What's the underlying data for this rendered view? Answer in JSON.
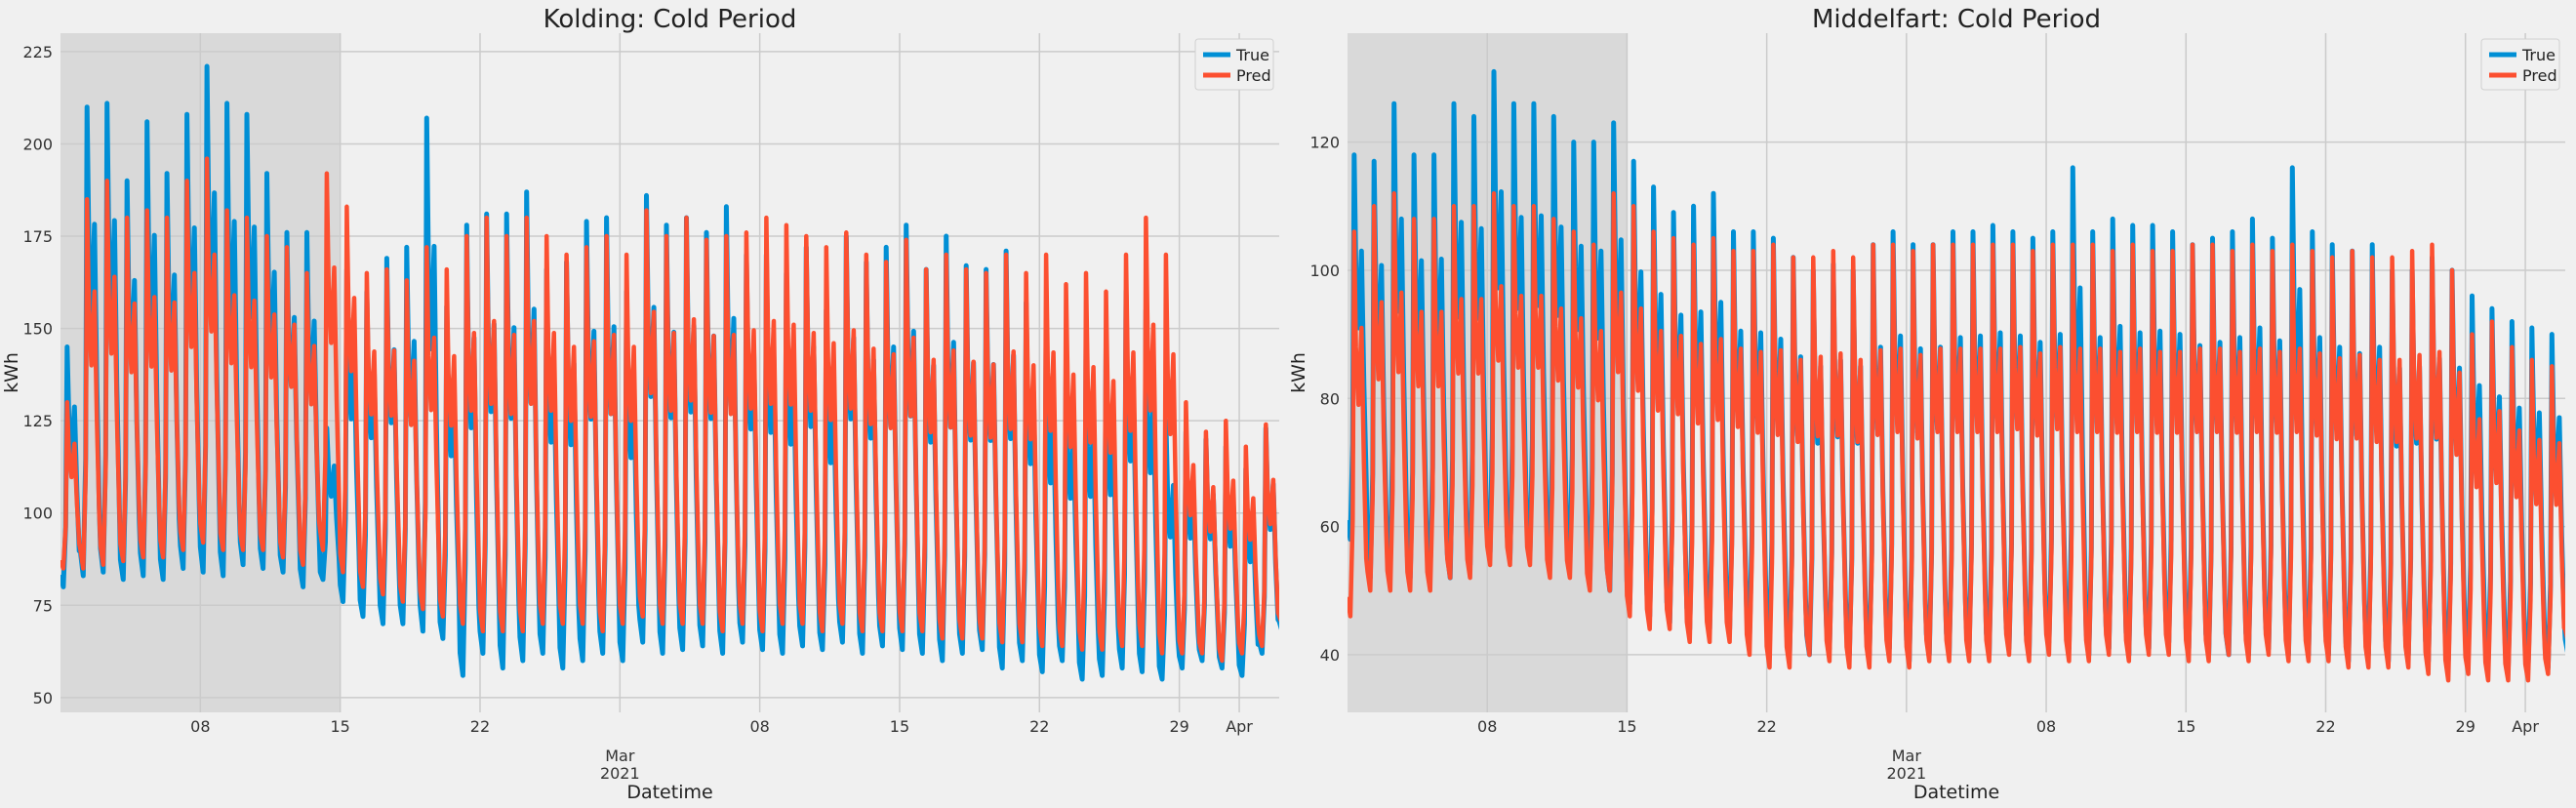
{
  "chart_data": [
    {
      "type": "line",
      "title": "Kolding: Cold Period",
      "xlabel": "Datetime",
      "ylabel": "kWh",
      "x_range": [
        "2021-02-01",
        "2021-04-03"
      ],
      "ylim": [
        46,
        230
      ],
      "yticks": [
        50,
        75,
        100,
        125,
        150,
        175,
        200,
        225
      ],
      "xticks": [
        {
          "date": "2021-02-08",
          "label": "08"
        },
        {
          "date": "2021-02-15",
          "label": "15"
        },
        {
          "date": "2021-02-22",
          "label": "22"
        },
        {
          "date": "2021-03-01",
          "label": "Mar",
          "sublabel": "2021"
        },
        {
          "date": "2021-03-08",
          "label": "08"
        },
        {
          "date": "2021-03-15",
          "label": "15"
        },
        {
          "date": "2021-03-22",
          "label": "22"
        },
        {
          "date": "2021-03-29",
          "label": "29"
        },
        {
          "date": "2021-04-01",
          "label": "Apr"
        }
      ],
      "shaded_span": [
        "2021-02-01",
        "2021-02-15"
      ],
      "grid": true,
      "legend": "top-right",
      "series": [
        {
          "name": "True",
          "color": "#008fd5",
          "daily_peaks": [
            145,
            210,
            211,
            190,
            206,
            192,
            208,
            221,
            211,
            208,
            192,
            176,
            176,
            123,
            166,
            160,
            169,
            172,
            207,
            156,
            178,
            181,
            181,
            187,
            166,
            168,
            179,
            180,
            160,
            186,
            178,
            180,
            176,
            183,
            170,
            170,
            165,
            172,
            155,
            175,
            168,
            172,
            178,
            166,
            175,
            167,
            166,
            171,
            157,
            150,
            140,
            145,
            145,
            160,
            155,
            125,
            122,
            120,
            118,
            112,
            123,
            122
          ],
          "daily_troughs": [
            80,
            83,
            84,
            82,
            83,
            82,
            85,
            84,
            83,
            86,
            85,
            84,
            80,
            82,
            76,
            72,
            70,
            70,
            68,
            66,
            56,
            62,
            58,
            60,
            62,
            58,
            60,
            62,
            60,
            65,
            62,
            63,
            64,
            62,
            65,
            63,
            62,
            64,
            63,
            65,
            62,
            64,
            63,
            62,
            60,
            62,
            63,
            58,
            60,
            57,
            60,
            55,
            56,
            58,
            57,
            55,
            58,
            60,
            58,
            56,
            62,
            68
          ]
        },
        {
          "name": "Pred",
          "color": "#fc4f30",
          "daily_peaks": [
            130,
            185,
            190,
            180,
            182,
            180,
            190,
            196,
            182,
            180,
            175,
            172,
            165,
            192,
            183,
            165,
            166,
            163,
            172,
            166,
            175,
            180,
            175,
            180,
            175,
            170,
            172,
            175,
            170,
            182,
            175,
            180,
            174,
            175,
            176,
            180,
            178,
            175,
            172,
            176,
            170,
            168,
            174,
            166,
            170,
            166,
            165,
            170,
            165,
            170,
            162,
            165,
            160,
            170,
            180,
            170,
            130,
            122,
            125,
            118,
            124,
            113
          ],
          "daily_troughs": [
            85,
            85,
            86,
            87,
            88,
            88,
            90,
            92,
            90,
            90,
            90,
            88,
            86,
            90,
            84,
            80,
            78,
            76,
            74,
            72,
            70,
            68,
            68,
            68,
            70,
            70,
            70,
            68,
            70,
            72,
            70,
            70,
            70,
            68,
            70,
            68,
            70,
            70,
            68,
            70,
            68,
            68,
            68,
            68,
            66,
            66,
            66,
            65,
            65,
            64,
            64,
            63,
            63,
            64,
            64,
            62,
            62,
            62,
            60,
            62,
            64,
            70
          ]
        }
      ]
    },
    {
      "type": "line",
      "title": "Middelfart: Cold Period",
      "xlabel": "Datetime",
      "ylabel": "kWh",
      "x_range": [
        "2021-02-01",
        "2021-04-03"
      ],
      "ylim": [
        31,
        137
      ],
      "yticks": [
        40,
        60,
        80,
        100,
        120
      ],
      "xticks": [
        {
          "date": "2021-02-08",
          "label": "08"
        },
        {
          "date": "2021-02-15",
          "label": "15"
        },
        {
          "date": "2021-02-22",
          "label": "22"
        },
        {
          "date": "2021-03-01",
          "label": "Mar",
          "sublabel": "2021"
        },
        {
          "date": "2021-03-08",
          "label": "08"
        },
        {
          "date": "2021-03-15",
          "label": "15"
        },
        {
          "date": "2021-03-22",
          "label": "22"
        },
        {
          "date": "2021-03-29",
          "label": "29"
        },
        {
          "date": "2021-04-01",
          "label": "Apr"
        }
      ],
      "shaded_span": [
        "2021-02-01",
        "2021-02-15"
      ],
      "grid": true,
      "legend": "top-right",
      "series": [
        {
          "name": "True",
          "color": "#008fd5",
          "daily_peaks": [
            118,
            117,
            126,
            118,
            118,
            126,
            124,
            131,
            126,
            126,
            124,
            120,
            120,
            123,
            117,
            113,
            109,
            110,
            112,
            106,
            106,
            105,
            102,
            100,
            101,
            100,
            104,
            106,
            104,
            104,
            106,
            106,
            107,
            106,
            105,
            106,
            116,
            106,
            108,
            107,
            107,
            106,
            104,
            105,
            106,
            108,
            105,
            116,
            106,
            104,
            103,
            104,
            100,
            100,
            102,
            100,
            96,
            94,
            92,
            91,
            90,
            88
          ],
          "daily_troughs": [
            58,
            52,
            54,
            52,
            53,
            52,
            54,
            56,
            55,
            56,
            55,
            55,
            52,
            50,
            48,
            46,
            45,
            44,
            44,
            44,
            43,
            42,
            40,
            40,
            41,
            40,
            40,
            41,
            39,
            40,
            40,
            41,
            40,
            41,
            40,
            42,
            41,
            40,
            41,
            40,
            41,
            42,
            41,
            40,
            40,
            40,
            41,
            40,
            40,
            40,
            39,
            40,
            39,
            40,
            39,
            39,
            40,
            39,
            38,
            38,
            38,
            40
          ]
        },
        {
          "name": "Pred",
          "color": "#fc4f30",
          "daily_peaks": [
            106,
            110,
            112,
            108,
            108,
            110,
            110,
            112,
            110,
            110,
            108,
            106,
            104,
            112,
            110,
            106,
            105,
            104,
            105,
            103,
            103,
            104,
            102,
            102,
            103,
            102,
            104,
            104,
            103,
            104,
            104,
            104,
            104,
            104,
            103,
            104,
            104,
            104,
            103,
            104,
            103,
            103,
            104,
            104,
            103,
            104,
            103,
            104,
            103,
            102,
            103,
            102,
            102,
            103,
            104,
            100,
            90,
            92,
            88,
            86,
            85,
            80
          ],
          "daily_troughs": [
            46,
            50,
            50,
            50,
            50,
            52,
            52,
            54,
            54,
            54,
            52,
            52,
            50,
            50,
            46,
            44,
            44,
            42,
            42,
            42,
            40,
            38,
            38,
            40,
            39,
            38,
            38,
            39,
            38,
            39,
            39,
            39,
            39,
            40,
            39,
            40,
            39,
            39,
            40,
            39,
            40,
            40,
            39,
            39,
            40,
            39,
            40,
            39,
            39,
            39,
            38,
            38,
            38,
            38,
            37,
            36,
            37,
            36,
            36,
            36,
            37,
            42
          ]
        }
      ]
    }
  ]
}
